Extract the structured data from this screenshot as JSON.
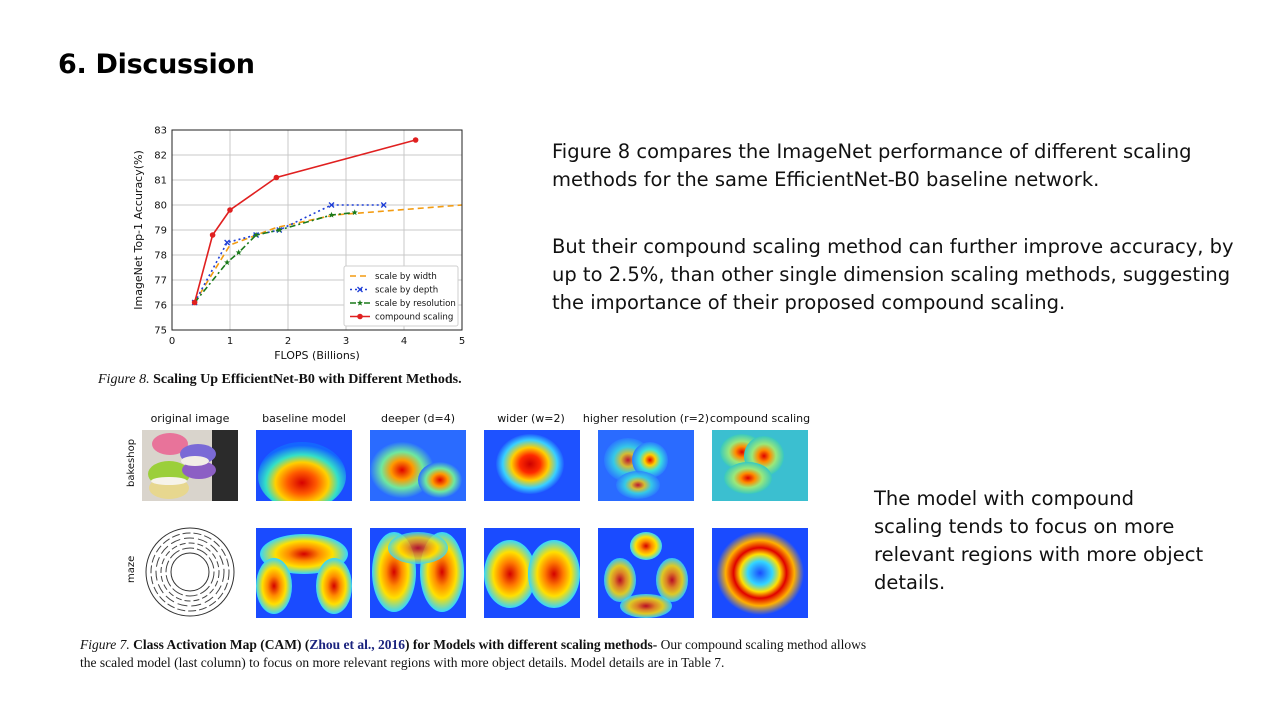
{
  "slide": {
    "title": "6. Discussion",
    "paragraph_1": "Figure 8 compares the ImageNet performance of different scaling methods for the same EfficientNet-B0 baseline network.",
    "paragraph_2": "But their compound scaling method can further improve accuracy, by up to 2.5%, than other single dimension scaling methods, suggesting the importance of their proposed compound scaling.",
    "paragraph_3": "The model with compound scaling tends to focus on more relevant regions with more object details."
  },
  "figure8": {
    "caption_prefix": "Figure 8.",
    "caption_text": "Scaling Up EfficientNet-B0 with Different Methods."
  },
  "figure7": {
    "caption_prefix": "Figure 7.",
    "caption_bold": "Class Activation Map (CAM) (",
    "caption_link": "Zhou et al., 2016",
    "caption_bold_2": ") for Models with different scaling methods-",
    "caption_rest": "Our compound scaling method allows the scaled model (last column) to focus on more relevant regions with more object details. Model details are in Table 7.",
    "columns": [
      "original image",
      "baseline model",
      "deeper (d=4)",
      "wider (w=2)",
      "higher resolution (r=2)",
      "compound scaling"
    ],
    "rows": [
      "bakeshop",
      "maze"
    ]
  },
  "chart_data": {
    "type": "line",
    "xlabel": "FLOPS (Billions)",
    "ylabel": "ImageNet Top-1 Accuracy(%)",
    "xlim": [
      0,
      5
    ],
    "ylim": [
      75,
      83
    ],
    "xticks": [
      0,
      1,
      2,
      3,
      4,
      5
    ],
    "yticks": [
      75,
      76,
      77,
      78,
      79,
      80,
      81,
      82,
      83
    ],
    "grid": true,
    "legend_position": "bottom-right",
    "series": [
      {
        "name": "scale by width",
        "color": "#f39c12",
        "dash": "6,4",
        "marker": "none",
        "x": [
          0.39,
          1.0,
          1.8,
          2.8,
          5.0
        ],
        "y": [
          76.1,
          78.4,
          79.1,
          79.6,
          80.0
        ]
      },
      {
        "name": "scale by depth",
        "color": "#1f3fd6",
        "dash": "2,3",
        "marker": "x",
        "x": [
          0.39,
          0.95,
          1.45,
          1.85,
          2.75,
          3.65
        ],
        "y": [
          76.1,
          78.5,
          78.8,
          79.0,
          80.0,
          80.0
        ]
      },
      {
        "name": "scale by resolution",
        "color": "#1b7a1b",
        "dash": "6,3,2,3",
        "marker": "star",
        "x": [
          0.39,
          0.95,
          1.15,
          1.45,
          1.85,
          2.75,
          3.15
        ],
        "y": [
          76.1,
          77.7,
          78.1,
          78.8,
          79.0,
          79.6,
          79.7
        ]
      },
      {
        "name": "compound scaling",
        "color": "#e02020",
        "dash": "",
        "marker": "dot",
        "x": [
          0.39,
          0.7,
          1.0,
          1.8,
          4.2
        ],
        "y": [
          76.1,
          78.8,
          79.8,
          81.1,
          82.6
        ]
      }
    ]
  }
}
